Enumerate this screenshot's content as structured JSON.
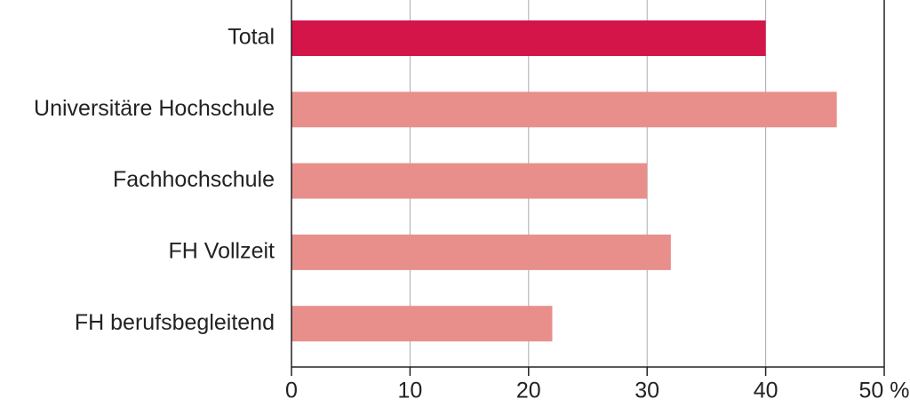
{
  "chart_data": {
    "type": "hbar",
    "categories": [
      "Total",
      "Universitäre Hochschule",
      "Fachhochschule",
      "FH Vollzeit",
      "FH berufsbegleitend"
    ],
    "values": [
      40,
      46,
      30,
      32,
      22
    ],
    "colors": [
      "#d4154a",
      "#e88f8c",
      "#e88f8c",
      "#e88f8c",
      "#e88f8c"
    ],
    "xlim": [
      0,
      50
    ],
    "xticks": [
      0,
      10,
      20,
      30,
      40,
      {
        "value": 50,
        "label": "50 %"
      }
    ],
    "grid": true
  }
}
